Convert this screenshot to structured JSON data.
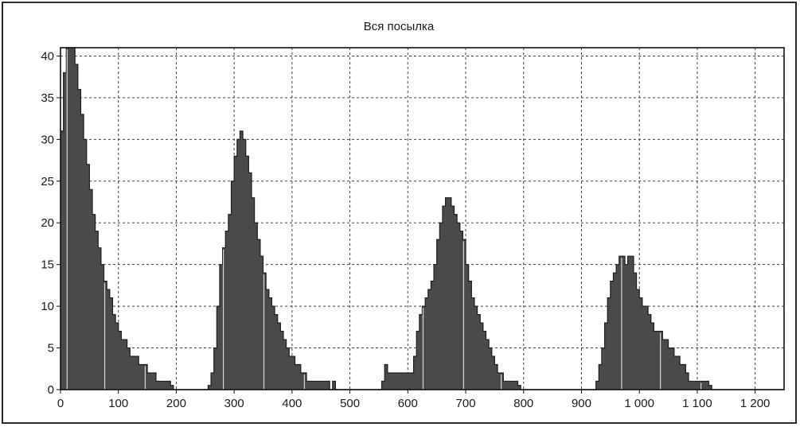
{
  "chart_data": {
    "type": "bar",
    "title": "Вся посылка",
    "xlabel": "",
    "ylabel": "",
    "xlim": [
      0,
      1250
    ],
    "ylim": [
      0,
      41
    ],
    "grid": true,
    "legend": "none",
    "x_ticks": [
      0,
      100,
      200,
      300,
      400,
      500,
      600,
      700,
      800,
      900,
      1000,
      1100,
      1200
    ],
    "x_tick_labels": [
      "0",
      "100",
      "200",
      "300",
      "400",
      "500",
      "600",
      "700",
      "800",
      "900",
      "1 000",
      "1 100",
      "1 200"
    ],
    "y_ticks": [
      0,
      5,
      10,
      15,
      20,
      25,
      30,
      35,
      40
    ],
    "y_tick_labels": [
      "0",
      "5",
      "10",
      "15",
      "20",
      "25",
      "30",
      "35",
      "40"
    ],
    "bin_width": 5,
    "points": [
      [
        0,
        31
      ],
      [
        5,
        38
      ],
      [
        10,
        41
      ],
      [
        15,
        41
      ],
      [
        20,
        41
      ],
      [
        25,
        39
      ],
      [
        30,
        36
      ],
      [
        35,
        33
      ],
      [
        40,
        30
      ],
      [
        45,
        27
      ],
      [
        50,
        24
      ],
      [
        55,
        21
      ],
      [
        60,
        19
      ],
      [
        65,
        17
      ],
      [
        70,
        15
      ],
      [
        75,
        13
      ],
      [
        80,
        12
      ],
      [
        85,
        11
      ],
      [
        90,
        9
      ],
      [
        95,
        8
      ],
      [
        100,
        7
      ],
      [
        105,
        6
      ],
      [
        110,
        6
      ],
      [
        115,
        5
      ],
      [
        120,
        4
      ],
      [
        125,
        4
      ],
      [
        130,
        4
      ],
      [
        135,
        3
      ],
      [
        140,
        3
      ],
      [
        145,
        3
      ],
      [
        150,
        2
      ],
      [
        155,
        2
      ],
      [
        160,
        2
      ],
      [
        165,
        1
      ],
      [
        170,
        1
      ],
      [
        175,
        1
      ],
      [
        180,
        1
      ],
      [
        185,
        1
      ],
      [
        190,
        0.5
      ],
      [
        195,
        0
      ],
      [
        200,
        0
      ],
      [
        205,
        0
      ],
      [
        210,
        0
      ],
      [
        215,
        0
      ],
      [
        220,
        0
      ],
      [
        225,
        0
      ],
      [
        230,
        0
      ],
      [
        235,
        0
      ],
      [
        240,
        0
      ],
      [
        245,
        0
      ],
      [
        250,
        0
      ],
      [
        255,
        0.5
      ],
      [
        260,
        2
      ],
      [
        265,
        5
      ],
      [
        270,
        10
      ],
      [
        275,
        15
      ],
      [
        280,
        17
      ],
      [
        285,
        19
      ],
      [
        290,
        21
      ],
      [
        295,
        25
      ],
      [
        300,
        28
      ],
      [
        305,
        30
      ],
      [
        310,
        31
      ],
      [
        315,
        30
      ],
      [
        320,
        28
      ],
      [
        325,
        26
      ],
      [
        330,
        23
      ],
      [
        335,
        20
      ],
      [
        340,
        18
      ],
      [
        345,
        16
      ],
      [
        350,
        14
      ],
      [
        355,
        12
      ],
      [
        360,
        11
      ],
      [
        365,
        10
      ],
      [
        370,
        9
      ],
      [
        375,
        8
      ],
      [
        380,
        7
      ],
      [
        385,
        6
      ],
      [
        390,
        5
      ],
      [
        395,
        4
      ],
      [
        400,
        4
      ],
      [
        405,
        3
      ],
      [
        410,
        3
      ],
      [
        415,
        2
      ],
      [
        420,
        2
      ],
      [
        425,
        1
      ],
      [
        430,
        1
      ],
      [
        435,
        1
      ],
      [
        440,
        1
      ],
      [
        445,
        1
      ],
      [
        450,
        1
      ],
      [
        455,
        1
      ],
      [
        460,
        1
      ],
      [
        465,
        0
      ],
      [
        470,
        1
      ],
      [
        475,
        0
      ],
      [
        480,
        0
      ],
      [
        485,
        0
      ],
      [
        490,
        0
      ],
      [
        495,
        0
      ],
      [
        500,
        0
      ],
      [
        505,
        0
      ],
      [
        510,
        0
      ],
      [
        515,
        0
      ],
      [
        520,
        0
      ],
      [
        525,
        0
      ],
      [
        530,
        0
      ],
      [
        535,
        0
      ],
      [
        540,
        0
      ],
      [
        545,
        0
      ],
      [
        550,
        0
      ],
      [
        555,
        1
      ],
      [
        560,
        3
      ],
      [
        565,
        2
      ],
      [
        570,
        2
      ],
      [
        575,
        2
      ],
      [
        580,
        2
      ],
      [
        585,
        2
      ],
      [
        590,
        2
      ],
      [
        595,
        2
      ],
      [
        600,
        2
      ],
      [
        605,
        2
      ],
      [
        610,
        4
      ],
      [
        615,
        7
      ],
      [
        620,
        9
      ],
      [
        625,
        10
      ],
      [
        630,
        11
      ],
      [
        635,
        12
      ],
      [
        640,
        13
      ],
      [
        645,
        15
      ],
      [
        650,
        18
      ],
      [
        655,
        20
      ],
      [
        660,
        22
      ],
      [
        665,
        23
      ],
      [
        670,
        23
      ],
      [
        675,
        22
      ],
      [
        680,
        21
      ],
      [
        685,
        20
      ],
      [
        690,
        19
      ],
      [
        695,
        18
      ],
      [
        700,
        15
      ],
      [
        705,
        13
      ],
      [
        710,
        11
      ],
      [
        715,
        10
      ],
      [
        720,
        9
      ],
      [
        725,
        8
      ],
      [
        730,
        7
      ],
      [
        735,
        6
      ],
      [
        740,
        5
      ],
      [
        745,
        4
      ],
      [
        750,
        3
      ],
      [
        755,
        2
      ],
      [
        760,
        2
      ],
      [
        765,
        1
      ],
      [
        770,
        1
      ],
      [
        775,
        1
      ],
      [
        780,
        1
      ],
      [
        785,
        1
      ],
      [
        790,
        0.5
      ],
      [
        795,
        0
      ],
      [
        800,
        0
      ],
      [
        805,
        0
      ],
      [
        810,
        0
      ],
      [
        815,
        0
      ],
      [
        820,
        0
      ],
      [
        825,
        0
      ],
      [
        830,
        0
      ],
      [
        835,
        0
      ],
      [
        840,
        0
      ],
      [
        845,
        0
      ],
      [
        850,
        0
      ],
      [
        855,
        0
      ],
      [
        860,
        0
      ],
      [
        865,
        0
      ],
      [
        870,
        0
      ],
      [
        875,
        0
      ],
      [
        880,
        0
      ],
      [
        885,
        0
      ],
      [
        890,
        0
      ],
      [
        895,
        0
      ],
      [
        900,
        0
      ],
      [
        905,
        0
      ],
      [
        910,
        0
      ],
      [
        915,
        0
      ],
      [
        920,
        0
      ],
      [
        925,
        1
      ],
      [
        930,
        3
      ],
      [
        935,
        5
      ],
      [
        940,
        8
      ],
      [
        945,
        11
      ],
      [
        950,
        13
      ],
      [
        955,
        14
      ],
      [
        960,
        15
      ],
      [
        965,
        16
      ],
      [
        970,
        16
      ],
      [
        975,
        15
      ],
      [
        980,
        16
      ],
      [
        985,
        16
      ],
      [
        990,
        14
      ],
      [
        995,
        12
      ],
      [
        1000,
        11
      ],
      [
        1005,
        10
      ],
      [
        1010,
        10
      ],
      [
        1015,
        9
      ],
      [
        1020,
        8
      ],
      [
        1025,
        7
      ],
      [
        1030,
        7
      ],
      [
        1035,
        7
      ],
      [
        1040,
        6
      ],
      [
        1045,
        6
      ],
      [
        1050,
        5
      ],
      [
        1055,
        5
      ],
      [
        1060,
        4
      ],
      [
        1065,
        4
      ],
      [
        1070,
        3
      ],
      [
        1075,
        3
      ],
      [
        1080,
        2
      ],
      [
        1085,
        1
      ],
      [
        1090,
        1
      ],
      [
        1095,
        1
      ],
      [
        1100,
        1
      ],
      [
        1105,
        1
      ],
      [
        1110,
        1
      ],
      [
        1115,
        1
      ],
      [
        1120,
        0.5
      ],
      [
        1125,
        0
      ],
      [
        1130,
        0
      ],
      [
        1135,
        0
      ],
      [
        1140,
        0
      ],
      [
        1145,
        0
      ],
      [
        1150,
        0
      ],
      [
        1155,
        0
      ],
      [
        1160,
        0
      ],
      [
        1165,
        0
      ],
      [
        1170,
        0
      ],
      [
        1175,
        0
      ],
      [
        1180,
        0
      ],
      [
        1185,
        0
      ],
      [
        1190,
        0
      ],
      [
        1195,
        0
      ],
      [
        1200,
        0
      ],
      [
        1205,
        0
      ],
      [
        1210,
        0
      ],
      [
        1215,
        0
      ],
      [
        1220,
        0
      ],
      [
        1225,
        0
      ],
      [
        1230,
        0
      ],
      [
        1235,
        0
      ],
      [
        1240,
        0
      ],
      [
        1245,
        0
      ]
    ]
  },
  "colors": {
    "bar_fill": "#4a4a4a",
    "bar_edge": "#1e1e1e",
    "divider_line": "#d8d8d8",
    "grid": "#404040",
    "axis": "#111111",
    "background": "#ffffff"
  },
  "divider_lines_x": [
    10,
    75,
    145,
    280,
    350,
    420,
    625,
    695,
    760,
    968,
    1035,
    1105
  ]
}
